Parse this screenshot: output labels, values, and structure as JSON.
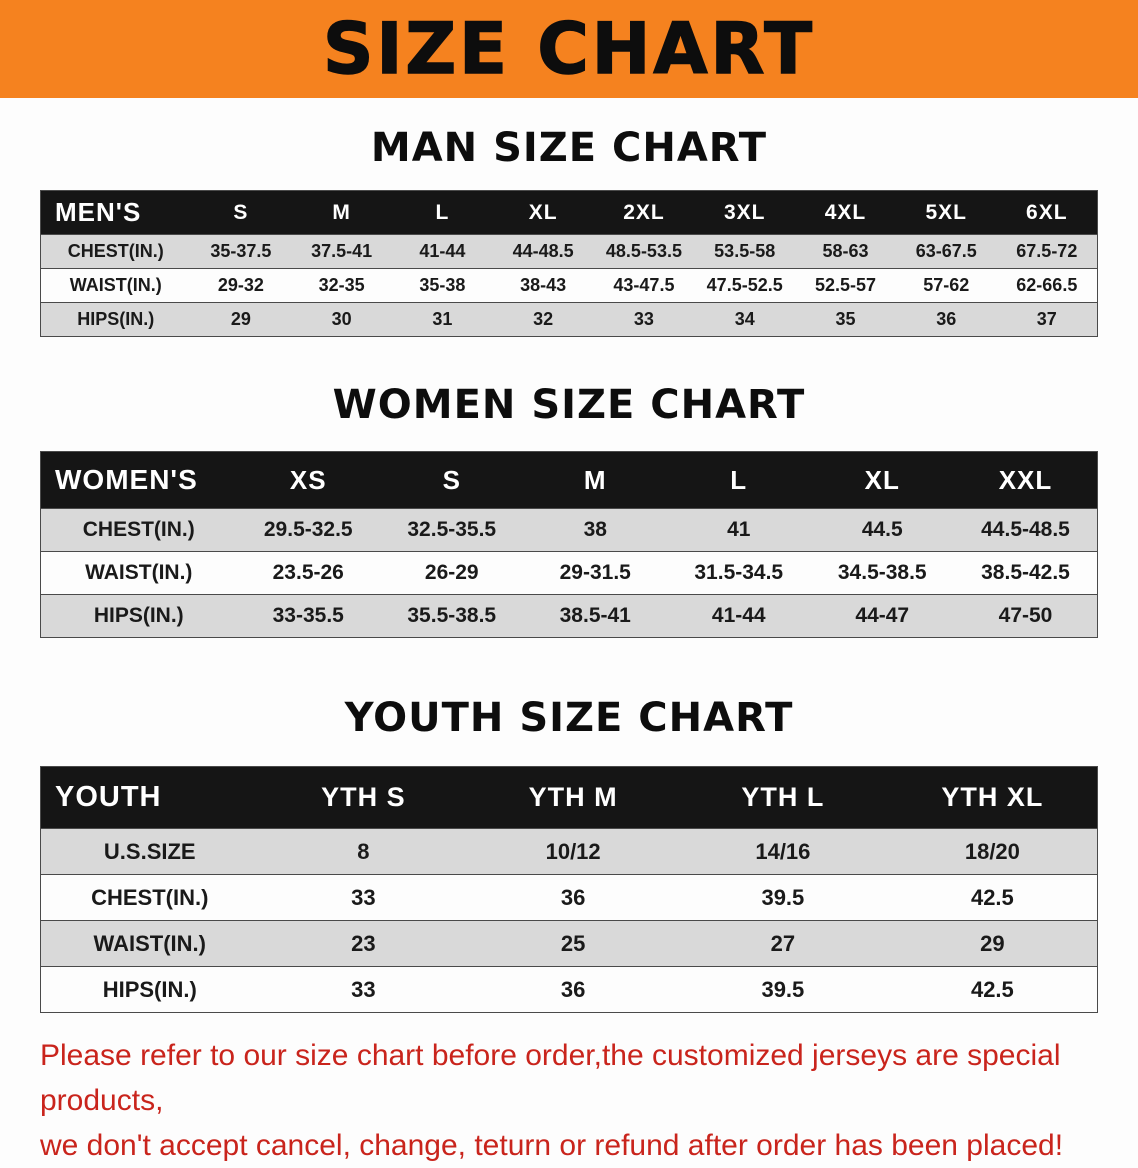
{
  "banner": {
    "title": "SIZE CHART"
  },
  "colors": {
    "banner_bg": "#f5821f",
    "header_row_bg": "#151515",
    "header_row_text": "#ffffff",
    "row_alt_bg": "#d9d9d9",
    "row_bg": "#fdfdfd",
    "footer_text": "#c9241c"
  },
  "sections": [
    {
      "heading": "MAN SIZE CHART",
      "table": {
        "header": [
          "MEN'S",
          "S",
          "M",
          "L",
          "XL",
          "2XL",
          "3XL",
          "4XL",
          "5XL",
          "6XL"
        ],
        "rows": [
          {
            "label": "CHEST(IN.)",
            "values": [
              "35-37.5",
              "37.5-41",
              "41-44",
              "44-48.5",
              "48.5-53.5",
              "53.5-58",
              "58-63",
              "63-67.5",
              "67.5-72"
            ]
          },
          {
            "label": "WAIST(IN.)",
            "values": [
              "29-32",
              "32-35",
              "35-38",
              "38-43",
              "43-47.5",
              "47.5-52.5",
              "52.5-57",
              "57-62",
              "62-66.5"
            ]
          },
          {
            "label": "HIPS(IN.)",
            "values": [
              "29",
              "30",
              "31",
              "32",
              "33",
              "34",
              "35",
              "36",
              "37"
            ]
          }
        ]
      }
    },
    {
      "heading": "WOMEN SIZE CHART",
      "table": {
        "header": [
          "WOMEN'S",
          "XS",
          "S",
          "M",
          "L",
          "XL",
          "XXL"
        ],
        "rows": [
          {
            "label": "CHEST(IN.)",
            "values": [
              "29.5-32.5",
              "32.5-35.5",
              "38",
              "41",
              "44.5",
              "44.5-48.5"
            ]
          },
          {
            "label": "WAIST(IN.)",
            "values": [
              "23.5-26",
              "26-29",
              "29-31.5",
              "31.5-34.5",
              "34.5-38.5",
              "38.5-42.5"
            ]
          },
          {
            "label": "HIPS(IN.)",
            "values": [
              "33-35.5",
              "35.5-38.5",
              "38.5-41",
              "41-44",
              "44-47",
              "47-50"
            ]
          }
        ]
      }
    },
    {
      "heading": "YOUTH SIZE CHART",
      "table": {
        "header": [
          "YOUTH",
          "YTH S",
          "YTH M",
          "YTH L",
          "YTH XL"
        ],
        "rows": [
          {
            "label": "U.S.SIZE",
            "values": [
              "8",
              "10/12",
              "14/16",
              "18/20"
            ]
          },
          {
            "label": "CHEST(IN.)",
            "values": [
              "33",
              "36",
              "39.5",
              "42.5"
            ]
          },
          {
            "label": "WAIST(IN.)",
            "values": [
              "23",
              "25",
              "27",
              "29"
            ]
          },
          {
            "label": "HIPS(IN.)",
            "values": [
              "33",
              "36",
              "39.5",
              "42.5"
            ]
          }
        ]
      }
    }
  ],
  "footer": {
    "line1": "Please refer to our size chart before order,the customized jerseys are special products,",
    "line2": "we don't accept cancel, change, teturn or refund after order has been placed!"
  }
}
